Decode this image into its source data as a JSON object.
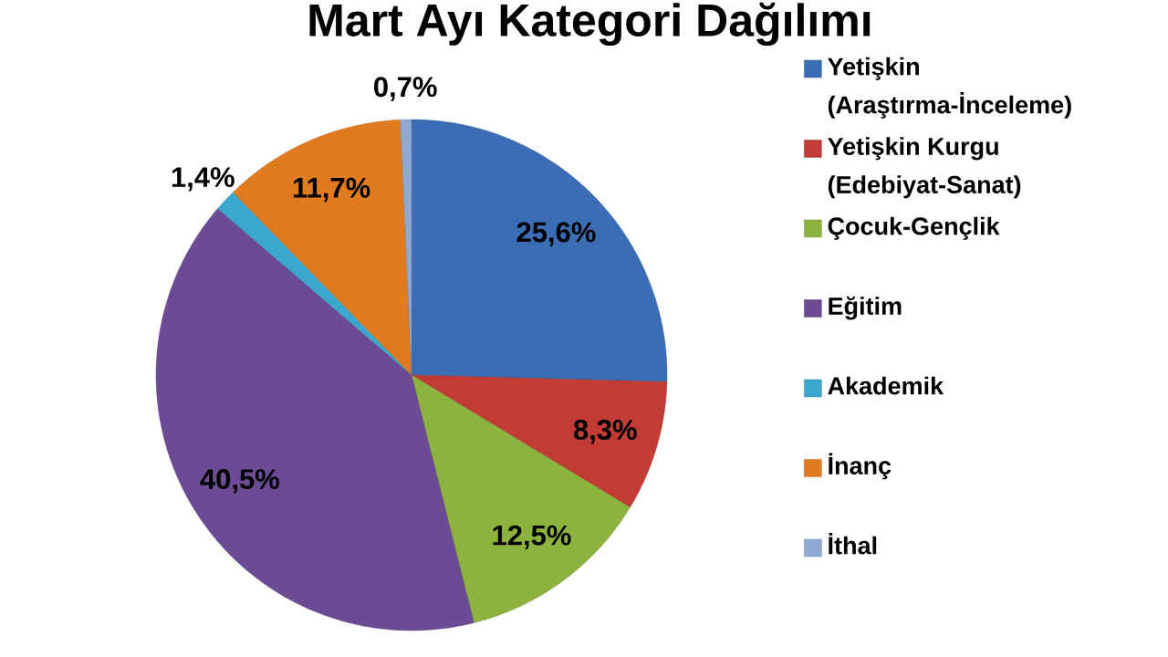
{
  "chart_data": {
    "type": "pie",
    "title": "Mart Ayı Kategori Dağılımı",
    "categories": [
      "Yetişkin (Araştırma-İnceleme)",
      "Yetişkin Kurgu (Edebiyat-Sanat)",
      "Çocuk-Gençlik",
      "Eğitim",
      "Akademik",
      "İnanç",
      "İthal"
    ],
    "values": [
      25.6,
      8.3,
      12.5,
      40.5,
      1.4,
      11.7,
      0.7
    ],
    "colors": [
      "#3a6db3",
      "#c23b35",
      "#8cb33e",
      "#6b4b94",
      "#3aa7cf",
      "#e07b1f",
      "#8fa9d2"
    ],
    "value_labels": [
      "25,6%",
      "8,3%",
      "12,5%",
      "40,5%",
      "1,4%",
      "11,7%",
      "0,7%"
    ],
    "legend": "right"
  }
}
